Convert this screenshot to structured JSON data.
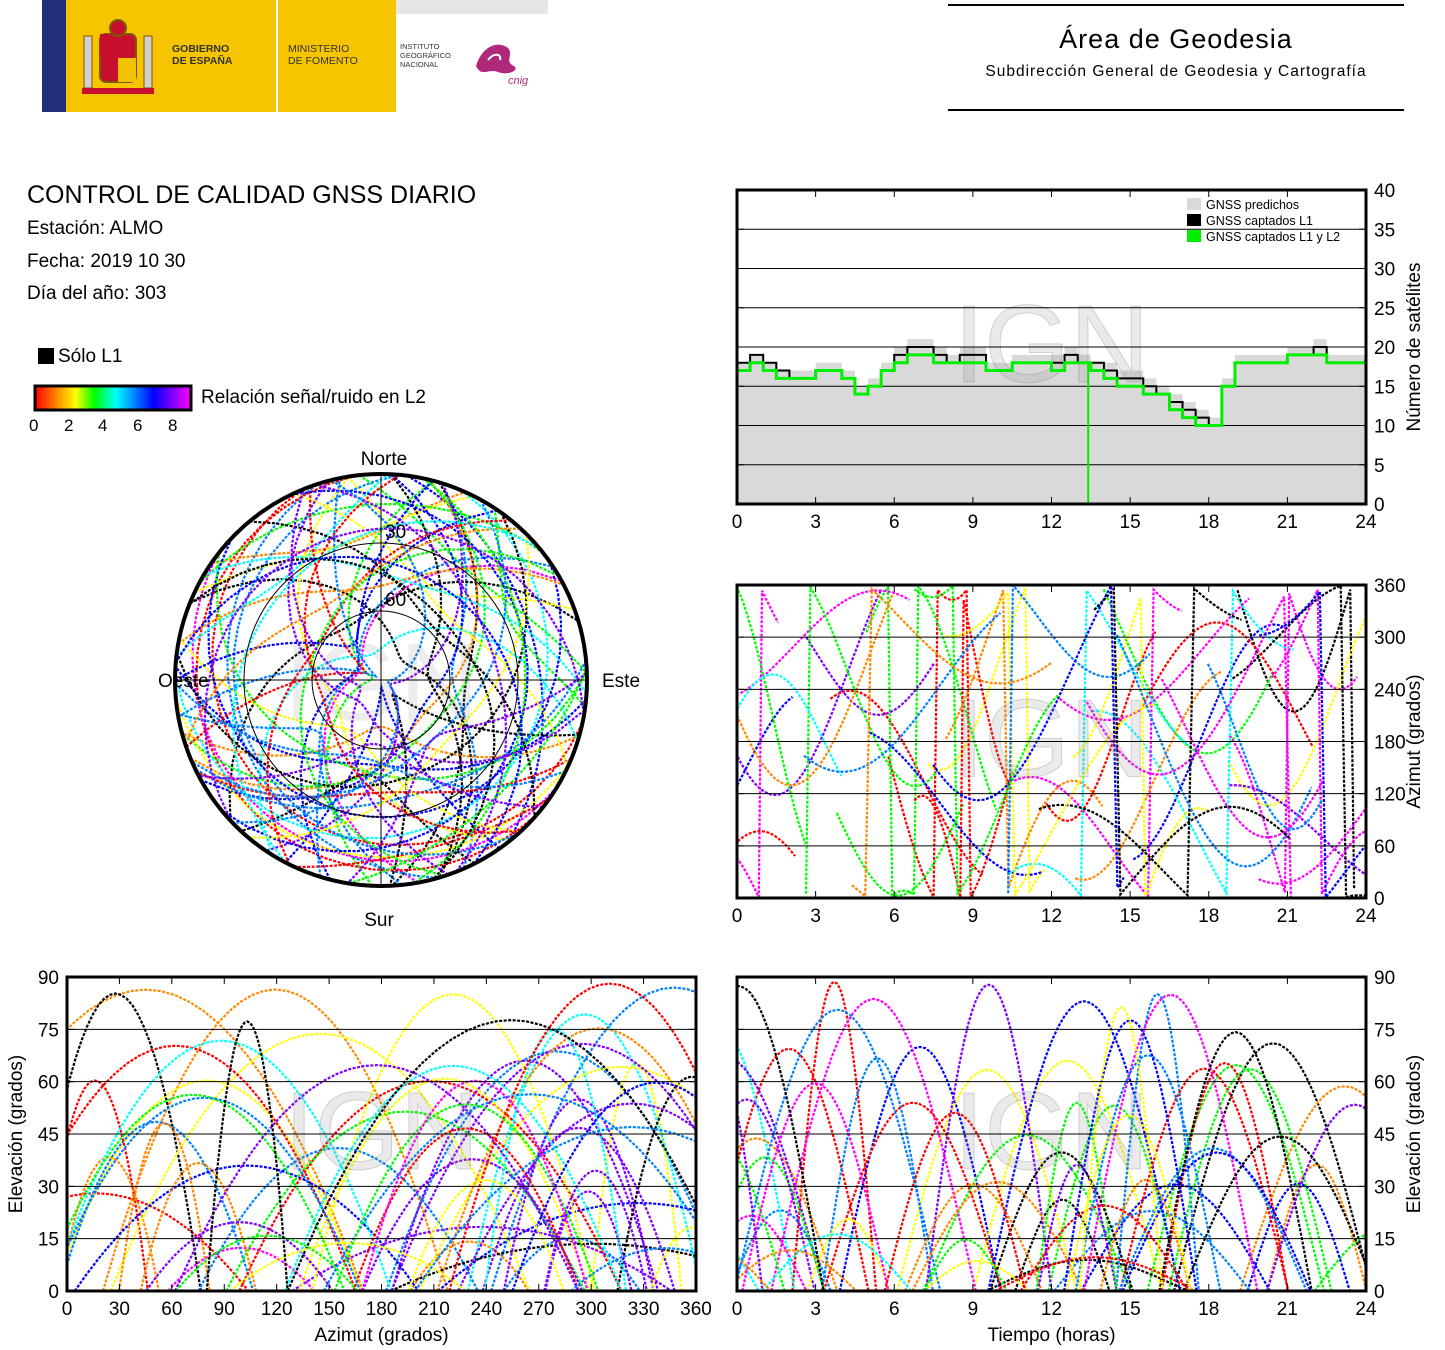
{
  "header": {
    "gov_label_1": "GOBIERNO",
    "gov_label_2": "DE ESPAÑA",
    "ministry_label_1": "MINISTERIO",
    "ministry_label_2": "DE FOMENTO",
    "ign_label_1": "INSTITUTO",
    "ign_label_2": "GEOGRÁFICO",
    "ign_label_3": "NACIONAL",
    "cnig_label": "cnig",
    "area_title": "Área de Geodesia",
    "area_subtitle": "Subdirección General de Geodesia y Cartografía"
  },
  "info": {
    "title": "CONTROL DE CALIDAD GNSS DIARIO",
    "station": "Estación: ALMO",
    "date": "Fecha: 2019 10 30",
    "doy": "Día del año: 303"
  },
  "legend": {
    "l1_only": "Sólo L1",
    "snr_label": "Relación señal/ruido en L2",
    "snr_ticks": [
      "0",
      "2",
      "4",
      "6",
      "8"
    ],
    "snr_colors": [
      "#ff0000",
      "#ff8800",
      "#ffff00",
      "#00ff00",
      "#00ffff",
      "#0080ff",
      "#0000ff",
      "#8000ff",
      "#ff00ff"
    ]
  },
  "watermark": "IGN",
  "chart_data": [
    {
      "type": "polar-skyplot",
      "directions": {
        "north": "Norte",
        "south": "Sur",
        "east": "Este",
        "west": "Oeste"
      },
      "ring_labels": [
        "30",
        "60"
      ],
      "ring_elevations": [
        30,
        60
      ]
    },
    {
      "type": "area",
      "x": [
        0,
        0.5,
        1,
        1.5,
        2,
        2.5,
        3,
        3.5,
        4,
        4.5,
        5,
        5.5,
        6,
        6.5,
        7,
        7.5,
        8,
        8.5,
        9,
        9.5,
        10,
        10.5,
        11,
        11.5,
        12,
        12.5,
        13,
        13.5,
        14,
        14.5,
        15,
        15.5,
        16,
        16.5,
        17,
        17.5,
        18,
        18.5,
        19,
        19.5,
        20,
        20.5,
        21,
        21.5,
        22,
        22.5,
        23,
        23.5,
        24
      ],
      "series": [
        {
          "name": "GNSS predichos",
          "color": "#d9d9d9",
          "values": [
            18,
            19,
            18,
            17,
            17,
            17,
            18,
            18,
            17,
            15,
            16,
            18,
            20,
            21,
            21,
            20,
            19,
            20,
            20,
            18,
            18,
            19,
            19,
            19,
            19,
            20,
            19,
            18,
            18,
            17,
            17,
            16,
            15,
            14,
            13,
            12,
            11,
            16,
            19,
            19,
            19,
            19,
            20,
            20,
            21,
            19,
            19,
            19,
            18
          ]
        },
        {
          "name": "GNSS captados L1",
          "color": "#000000",
          "values": [
            18,
            19,
            18,
            17,
            16,
            16,
            17,
            17,
            16,
            14,
            15,
            17,
            19,
            20,
            20,
            19,
            18,
            19,
            19,
            17,
            17,
            18,
            18,
            18,
            18,
            19,
            18,
            18,
            17,
            16,
            16,
            15,
            14,
            13,
            12,
            11,
            10,
            15,
            18,
            18,
            18,
            18,
            19,
            19,
            20,
            18,
            18,
            18,
            17
          ]
        },
        {
          "name": "GNSS captados L1 y L2",
          "color": "#00ee00",
          "values": [
            17,
            18,
            17,
            16,
            16,
            16,
            17,
            17,
            16,
            14,
            15,
            17,
            18,
            19,
            19,
            18,
            18,
            18,
            18,
            17,
            17,
            18,
            18,
            18,
            17,
            18,
            18,
            17,
            16,
            15,
            15,
            14,
            14,
            12,
            11,
            10,
            10,
            15,
            18,
            18,
            18,
            18,
            19,
            19,
            19,
            18,
            18,
            18,
            17
          ]
        }
      ],
      "xticks": [
        "0",
        "3",
        "6",
        "9",
        "12",
        "15",
        "18",
        "21",
        "24"
      ],
      "yticks": [
        "0",
        "5",
        "10",
        "15",
        "20",
        "25",
        "30",
        "35",
        "40"
      ],
      "xlim": [
        0,
        24
      ],
      "ylim": [
        0,
        40
      ],
      "ylabel": "Número de satélites",
      "legend_position": "top-right",
      "grid": true
    },
    {
      "type": "scatter",
      "xticks": [
        "0",
        "3",
        "6",
        "9",
        "12",
        "15",
        "18",
        "21",
        "24"
      ],
      "yticks": [
        "0",
        "60",
        "120",
        "180",
        "240",
        "300",
        "360"
      ],
      "xlim": [
        0,
        24
      ],
      "ylim": [
        0,
        360
      ],
      "ylabel": "Azimut (grados)",
      "grid": true
    },
    {
      "type": "scatter",
      "xticks": [
        "0",
        "30",
        "60",
        "90",
        "120",
        "150",
        "180",
        "210",
        "240",
        "270",
        "300",
        "330",
        "360"
      ],
      "yticks": [
        "0",
        "15",
        "30",
        "45",
        "60",
        "75",
        "90"
      ],
      "xlim": [
        0,
        360
      ],
      "ylim": [
        0,
        90
      ],
      "xlabel": "Azimut (grados)",
      "ylabel": "Elevación (grados)",
      "grid": true
    },
    {
      "type": "scatter",
      "xticks": [
        "0",
        "3",
        "6",
        "9",
        "12",
        "15",
        "18",
        "21",
        "24"
      ],
      "yticks": [
        "0",
        "15",
        "30",
        "45",
        "60",
        "75",
        "90"
      ],
      "xlim": [
        0,
        24
      ],
      "ylim": [
        0,
        90
      ],
      "xlabel": "Tiempo (horas)",
      "ylabel": "Elevación (grados)",
      "grid": true
    }
  ]
}
